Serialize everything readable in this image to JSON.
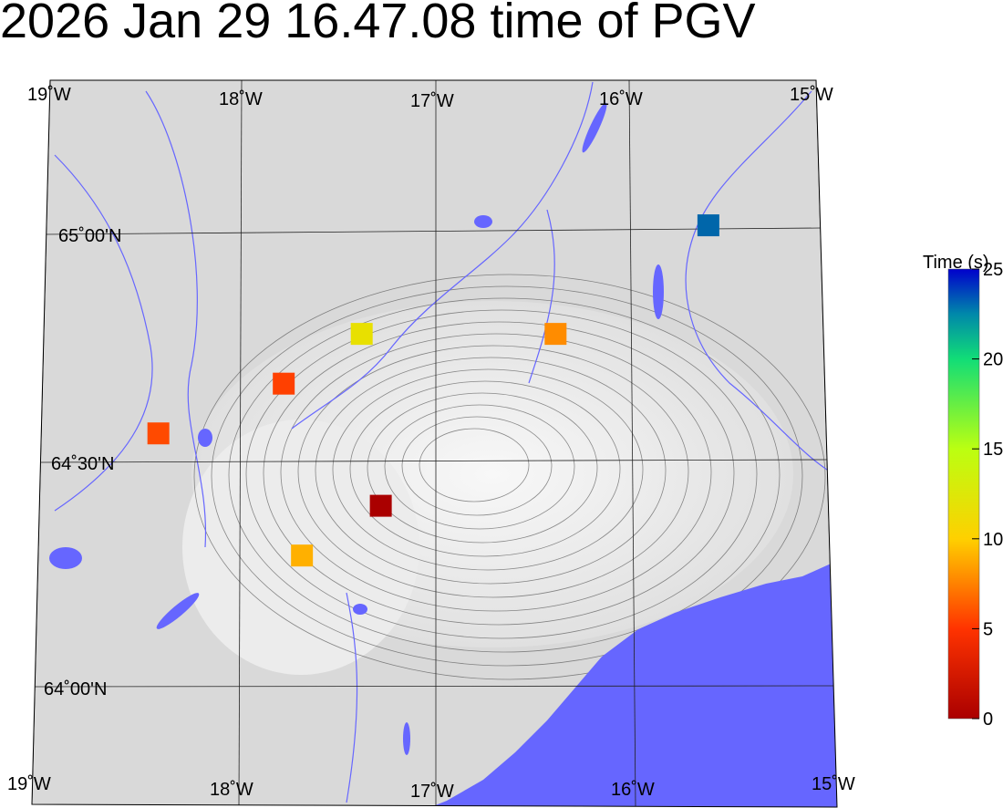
{
  "title": "2026 Jan 29 16.47.08 time of PGV",
  "map": {
    "lon_labels_top": [
      "19˚W",
      "18˚W",
      "17˚W",
      "16˚W",
      "15˚W"
    ],
    "lon_labels_bottom": [
      "19˚W",
      "18˚W",
      "17˚W",
      "16˚W",
      "15˚W"
    ],
    "lat_labels": [
      "65˚00'N",
      "64˚30'N",
      "64˚00'N"
    ],
    "land_color": "#d9d9d9",
    "water_color": "#6666ff",
    "contour_color": "#333333"
  },
  "colorbar": {
    "title": "Time (s)",
    "min": 0,
    "max": 25,
    "ticks": [
      "0",
      "5",
      "10",
      "15",
      "20",
      "25"
    ],
    "colors": [
      "#aa0000",
      "#ff3300",
      "#ffcc00",
      "#bbff11",
      "#11dd77",
      "#0088aa",
      "#0000cc"
    ]
  },
  "stations": [
    {
      "lon": -15.57,
      "lat": 65.02,
      "time": 23,
      "color": "#0066aa"
    },
    {
      "lon": -16.37,
      "lat": 64.78,
      "time": 8,
      "color": "#ff8c00"
    },
    {
      "lon": -17.37,
      "lat": 64.78,
      "time": 12.5,
      "color": "#e8e000"
    },
    {
      "lon": -17.77,
      "lat": 64.67,
      "time": 5.5,
      "color": "#ff4000"
    },
    {
      "lon": -18.41,
      "lat": 64.56,
      "time": 5,
      "color": "#ff4a00"
    },
    {
      "lon": -17.27,
      "lat": 64.4,
      "time": 0.5,
      "color": "#aa0000"
    },
    {
      "lon": -17.67,
      "lat": 64.29,
      "time": 9.5,
      "color": "#ffb000"
    }
  ]
}
